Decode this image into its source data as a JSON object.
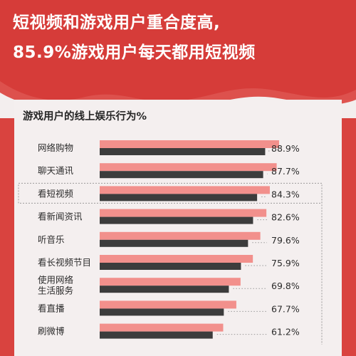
{
  "header": {
    "title_line1": "短视频和游戏用户重合度高,",
    "title_line2": "85.9%游戏用户每天都用短视频"
  },
  "colors": {
    "background_red": "#d9433f",
    "series_pink": "#f2908c",
    "series_dark": "#3c3c3c",
    "card": "#f4efef"
  },
  "chart_data": {
    "type": "bar",
    "orientation": "horizontal",
    "title": "游戏用户的线上娱乐行为%",
    "categories": [
      "网络购物",
      "聊天通讯",
      "看短视频",
      "看新闻资讯",
      "听音乐",
      "看长视频节目",
      "使用网络生活服务",
      "看直播",
      "刷微博"
    ],
    "category_display": [
      [
        "网络购物"
      ],
      [
        "聊天通讯"
      ],
      [
        "看短视频"
      ],
      [
        "看新闻资讯"
      ],
      [
        "听音乐"
      ],
      [
        "看长视频节目"
      ],
      [
        "使用网络",
        "生活服务"
      ],
      [
        "看直播"
      ],
      [
        "刷微博"
      ]
    ],
    "series": [
      {
        "values": [
          88.9,
          87.7,
          84.3,
          82.6,
          79.6,
          75.9,
          69.8,
          67.7,
          61.2
        ]
      },
      {
        "values": [
          82.0,
          81.0,
          78.0,
          76.0,
          73.5,
          70.0,
          64.0,
          61.5,
          56.0
        ]
      }
    ],
    "value_labels": [
      "88.9%",
      "87.7%",
      "84.3%",
      "82.6%",
      "79.6%",
      "75.9%",
      "69.8%",
      "67.7%",
      "61.2%"
    ],
    "highlighted_category": "看短视频",
    "xlim": [
      0,
      100
    ],
    "grid": false,
    "legend": "none"
  }
}
